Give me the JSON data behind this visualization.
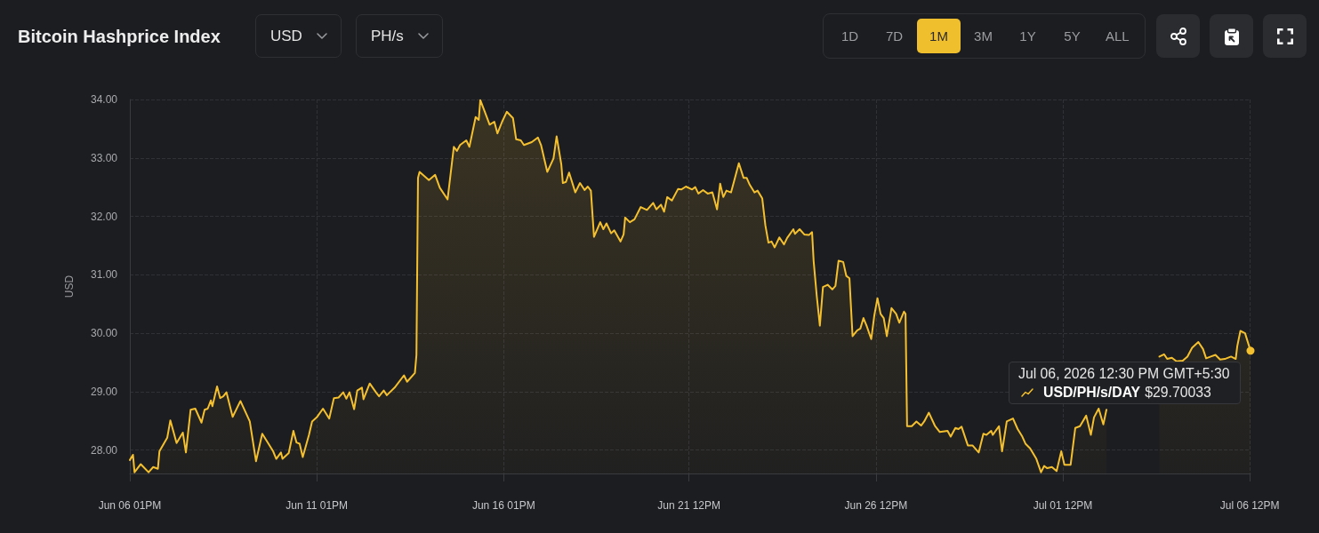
{
  "chart_data": {
    "type": "area",
    "title": "Bitcoin Hashprice Index",
    "ylabel": "USD",
    "annotations": [
      "USD",
      "PH/s",
      "1D",
      "7D",
      "1M",
      "3M",
      "1Y",
      "5Y",
      "ALL",
      {
        "text": "Jul 06, 2026 12:30 PM GMT+5:30\nUSD/PH/s/DAY $29.70033",
        "x": "2026-07-06T12:30",
        "y": 29.70033
      }
    ],
    "x": [
      "2026-06-06T13:00",
      "2026-06-06T15:00",
      "2026-06-06T16:00",
      "2026-06-06T20:00",
      "2026-06-07T01:00",
      "2026-06-07T04:00",
      "2026-06-07T07:00",
      "2026-06-07T08:00",
      "2026-06-07T13:00",
      "2026-06-07T15:00",
      "2026-06-07T19:00",
      "2026-06-07T23:00",
      "2026-06-08T01:00",
      "2026-06-08T04:00",
      "2026-06-08T07:00",
      "2026-06-08T11:00",
      "2026-06-08T13:00",
      "2026-06-08T15:00",
      "2026-06-08T17:00",
      "2026-06-08T18:00",
      "2026-06-08T21:00",
      "2026-06-08T23:00",
      "2026-06-09T01:00",
      "2026-06-09T03:00",
      "2026-06-09T07:00",
      "2026-06-09T12:00",
      "2026-06-09T18:00",
      "2026-06-09T22:00",
      "2026-06-10T02:00",
      "2026-06-10T06:00",
      "2026-06-10T09:00",
      "2026-06-10T11:00",
      "2026-06-10T14:00",
      "2026-06-10T15:00",
      "2026-06-10T19:00",
      "2026-06-10T22:00",
      "2026-06-11T00:00",
      "2026-06-11T02:00",
      "2026-06-11T04:00",
      "2026-06-11T08:00",
      "2026-06-11T10:00",
      "2026-06-11T13:00",
      "2026-06-11T17:00",
      "2026-06-11T21:00",
      "2026-06-12T00:00",
      "2026-06-12T03:00",
      "2026-06-12T06:00",
      "2026-06-12T08:00",
      "2026-06-12T10:00",
      "2026-06-12T13:00",
      "2026-06-12T15:00",
      "2026-06-12T18:00",
      "2026-06-12T19:00",
      "2026-06-12T23:00",
      "2026-06-13T03:00",
      "2026-06-13T05:00",
      "2026-06-13T08:00",
      "2026-06-13T10:00",
      "2026-06-13T15:00",
      "2026-06-13T21:00",
      "2026-06-13T23:00",
      "2026-06-14T04:00",
      "2026-06-14T05:00",
      "2026-06-14T06:00",
      "2026-06-14T07:00",
      "2026-06-14T13:00",
      "2026-06-14T17:00",
      "2026-06-14T20:00",
      "2026-06-15T01:00",
      "2026-06-15T05:00",
      "2026-06-15T07:00",
      "2026-06-15T09:00",
      "2026-06-15T13:00",
      "2026-06-15T15:00",
      "2026-06-15T19:00",
      "2026-06-15T21:00",
      "2026-06-15T22:00",
      "2026-06-16T01:00",
      "2026-06-16T04:00",
      "2026-06-16T07:00",
      "2026-06-16T09:00",
      "2026-06-16T12:00",
      "2026-06-16T15:00",
      "2026-06-16T19:00",
      "2026-06-16T21:00",
      "2026-06-17T00:00",
      "2026-06-17T02:00",
      "2026-06-17T07:00",
      "2026-06-17T11:00",
      "2026-06-17T13:00",
      "2026-06-17T17:00",
      "2026-06-17T21:00",
      "2026-06-17T23:00",
      "2026-06-18T02:00",
      "2026-06-18T03:00",
      "2026-06-18T05:00",
      "2026-06-18T07:00",
      "2026-06-18T11:00",
      "2026-06-18T14:00",
      "2026-06-18T17:00",
      "2026-06-18T19:00",
      "2026-06-18T21:00",
      "2026-06-18T23:00",
      "2026-06-19T03:00",
      "2026-06-19T05:00",
      "2026-06-19T07:00",
      "2026-06-19T10:00",
      "2026-06-19T12:00",
      "2026-06-19T16:00",
      "2026-06-19T18:00",
      "2026-06-19T19:00",
      "2026-06-19T22:00",
      "2026-06-20T01:00",
      "2026-06-20T05:00",
      "2026-06-20T09:00",
      "2026-06-20T13:00",
      "2026-06-20T15:00",
      "2026-06-20T18:00",
      "2026-06-20T20:00",
      "2026-06-20T22:00",
      "2026-06-21T01:00",
      "2026-06-21T05:00",
      "2026-06-21T07:00",
      "2026-06-21T10:00",
      "2026-06-21T14:00",
      "2026-06-21T16:00",
      "2026-06-21T18:00",
      "2026-06-21T21:00",
      "2026-06-22T00:00",
      "2026-06-22T03:00",
      "2026-06-22T06:00",
      "2026-06-22T08:00",
      "2026-06-22T10:00",
      "2026-06-22T12:00",
      "2026-06-22T15:00",
      "2026-06-22T17:00",
      "2026-06-22T20:00",
      "2026-06-22T23:00",
      "2026-06-23T01:00",
      "2026-06-23T03:00",
      "2026-06-23T06:00",
      "2026-06-23T08:00",
      "2026-06-23T11:00",
      "2026-06-23T13:00",
      "2026-06-23T15:00",
      "2026-06-23T17:00",
      "2026-06-23T19:00",
      "2026-06-23T22:00",
      "2026-06-24T01:00",
      "2026-06-24T03:00",
      "2026-06-24T07:00",
      "2026-06-24T08:00",
      "2026-06-24T11:00",
      "2026-06-24T14:00",
      "2026-06-24T17:00",
      "2026-06-24T19:00",
      "2026-06-24T20:00",
      "2026-06-24T22:00",
      "2026-06-25T00:00",
      "2026-06-25T02:00",
      "2026-06-25T05:00",
      "2026-06-25T08:00",
      "2026-06-25T10:00",
      "2026-06-25T12:00",
      "2026-06-25T15:00",
      "2026-06-25T17:00",
      "2026-06-25T19:00",
      "2026-06-25T21:00",
      "2026-06-26T00:00",
      "2026-06-26T02:00",
      "2026-06-26T04:00",
      "2026-06-26T06:00",
      "2026-06-26T09:00",
      "2026-06-26T11:00",
      "2026-06-26T13:00",
      "2026-06-26T15:00",
      "2026-06-26T17:00",
      "2026-06-26T19:00",
      "2026-06-26T22:00",
      "2026-06-27T01:00",
      "2026-06-27T03:00",
      "2026-06-27T06:00",
      "2026-06-27T07:00",
      "2026-06-27T08:00",
      "2026-06-27T11:00",
      "2026-06-27T14:00",
      "2026-06-27T17:00",
      "2026-06-27T19:00",
      "2026-06-27T22:00",
      "2026-06-28T02:00",
      "2026-06-28T05:00",
      "2026-06-28T10:00",
      "2026-06-28T12:00",
      "2026-06-28T15:00",
      "2026-06-28T17:00",
      "2026-06-28T19:00",
      "2026-06-28T23:00",
      "2026-06-29T02:00",
      "2026-06-29T06:00",
      "2026-06-29T09:00",
      "2026-06-29T11:00",
      "2026-06-29T14:00",
      "2026-06-29T15:00",
      "2026-06-29T19:00",
      "2026-06-29T21:00",
      "2026-06-30T00:00",
      "2026-06-30T04:00",
      "2026-06-30T07:00",
      "2026-06-30T10:00",
      "2026-06-30T12:00",
      "2026-06-30T15:00",
      "2026-06-30T19:00",
      "2026-06-30T22:00",
      "2026-07-01T00:00",
      "2026-07-01T02:00",
      "2026-07-01T05:00",
      "2026-07-01T08:00",
      "2026-07-01T11:00",
      "2026-07-01T13:00",
      "2026-07-01T17:00",
      "2026-07-01T20:00",
      "2026-07-01T23:00",
      "2026-07-02T03:00",
      "2026-07-02T06:00",
      "2026-07-02T08:00",
      "2026-07-02T11:00",
      "2026-07-02T14:00",
      "2026-07-02T16:00",
      "2026-07-03T07:00",
      "2026-07-04T02:00",
      "2026-07-04T05:00",
      "2026-07-04T07:00",
      "2026-07-04T10:00",
      "2026-07-04T13:00",
      "2026-07-04T17:00",
      "2026-07-04T20:00",
      "2026-07-04T23:00",
      "2026-07-05T03:00",
      "2026-07-05T06:00",
      "2026-07-05T08:00",
      "2026-07-05T11:00",
      "2026-07-05T14:00",
      "2026-07-05T17:00",
      "2026-07-05T20:00",
      "2026-07-06T00:00",
      "2026-07-06T03:00",
      "2026-07-06T04:00",
      "2026-07-06T06:00",
      "2026-07-06T09:00",
      "2026-07-06T12:30"
    ],
    "values": [
      27.83,
      27.92,
      27.62,
      27.76,
      27.62,
      27.71,
      27.68,
      27.98,
      28.21,
      28.51,
      28.12,
      28.3,
      27.96,
      28.69,
      28.71,
      28.47,
      28.69,
      28.71,
      28.85,
      28.75,
      29.09,
      28.89,
      28.92,
      28.99,
      28.57,
      28.84,
      28.49,
      27.81,
      28.28,
      28.11,
      27.98,
      27.85,
      27.96,
      27.85,
      27.95,
      28.33,
      28.13,
      28.11,
      27.88,
      28.26,
      28.49,
      28.56,
      28.71,
      28.54,
      28.89,
      28.9,
      28.99,
      28.88,
      28.99,
      28.7,
      29.02,
      29.07,
      28.87,
      29.14,
      28.99,
      28.92,
      29.02,
      28.94,
      29.07,
      29.28,
      29.17,
      29.32,
      29.63,
      32.66,
      32.76,
      32.62,
      32.71,
      32.49,
      32.29,
      33.19,
      33.12,
      33.22,
      33.3,
      33.19,
      33.7,
      33.65,
      33.99,
      33.78,
      33.57,
      33.62,
      33.42,
      33.62,
      33.79,
      33.68,
      33.32,
      33.3,
      33.22,
      33.27,
      33.35,
      33.22,
      32.76,
      32.99,
      33.37,
      32.89,
      32.57,
      32.59,
      32.75,
      32.41,
      32.57,
      32.45,
      32.51,
      32.44,
      31.65,
      31.9,
      31.78,
      31.88,
      31.71,
      31.76,
      31.57,
      31.69,
      31.98,
      31.9,
      31.95,
      32.16,
      32.11,
      32.23,
      32.12,
      32.2,
      32.08,
      32.33,
      32.27,
      32.47,
      32.46,
      32.51,
      32.46,
      32.5,
      32.39,
      32.45,
      32.39,
      32.41,
      32.12,
      32.56,
      32.33,
      32.44,
      32.41,
      32.61,
      32.91,
      32.66,
      32.66,
      32.54,
      32.41,
      32.44,
      32.31,
      31.85,
      31.55,
      31.57,
      31.47,
      31.64,
      31.52,
      31.63,
      31.78,
      31.7,
      31.78,
      31.69,
      31.68,
      31.73,
      31.24,
      30.64,
      30.13,
      30.79,
      30.83,
      30.75,
      30.81,
      31.24,
      31.22,
      30.98,
      30.94,
      29.95,
      30.05,
      30.08,
      30.26,
      30.13,
      29.9,
      30.31,
      30.6,
      30.33,
      30.26,
      29.95,
      30.43,
      30.33,
      30.18,
      30.37,
      30.33,
      28.41,
      28.41,
      28.49,
      28.42,
      28.49,
      28.64,
      28.41,
      28.31,
      28.33,
      28.23,
      28.38,
      28.36,
      28.4,
      28.08,
      28.08,
      27.96,
      28.28,
      28.26,
      28.33,
      28.26,
      28.41,
      27.98,
      28.49,
      28.54,
      28.36,
      28.23,
      28.11,
      28.03,
      27.85,
      27.62,
      27.73,
      27.69,
      27.71,
      27.64,
      27.98,
      27.75,
      27.75,
      28.38,
      28.41,
      28.59,
      28.26,
      28.56,
      28.71,
      28.44,
      28.69,
      null,
      29.6,
      29.64,
      29.56,
      29.58,
      29.52,
      29.53,
      29.6,
      29.75,
      29.85,
      29.73,
      29.57,
      29.6,
      29.63,
      29.55,
      29.56,
      29.6,
      29.56,
      29.78,
      30.04,
      30.0,
      29.7
    ],
    "color": "#f4c02f",
    "marker": "none",
    "line_style": "solid",
    "grid": true,
    "xlim": [
      "2026-06-06T13:00",
      "2026-07-06T12:30"
    ],
    "xticks": [
      {
        "value": "2026-06-06T13:00",
        "label": "Jun 06 01PM"
      },
      {
        "value": "2026-06-11T13:00",
        "label": "Jun 11 01PM"
      },
      {
        "value": "2026-06-16T13:00",
        "label": "Jun 16 01PM"
      },
      {
        "value": "2026-06-21T12:00",
        "label": "Jun 21 12PM"
      },
      {
        "value": "2026-06-26T12:00",
        "label": "Jun 26 12PM"
      },
      {
        "value": "2026-07-01T12:00",
        "label": "Jul 01 12PM"
      },
      {
        "value": "2026-07-06T12:00",
        "label": "Jul 06 12PM"
      }
    ],
    "ylim": [
      27.6,
      34.0
    ],
    "yticks": [
      {
        "value": 28,
        "label": "28.00"
      },
      {
        "value": 29,
        "label": "29.00"
      },
      {
        "value": 30,
        "label": "30.00"
      },
      {
        "value": 31,
        "label": "31.00"
      },
      {
        "value": 32,
        "label": "32.00"
      },
      {
        "value": 33,
        "label": "33.00"
      },
      {
        "value": 34,
        "label": "34.00"
      }
    ]
  }
}
